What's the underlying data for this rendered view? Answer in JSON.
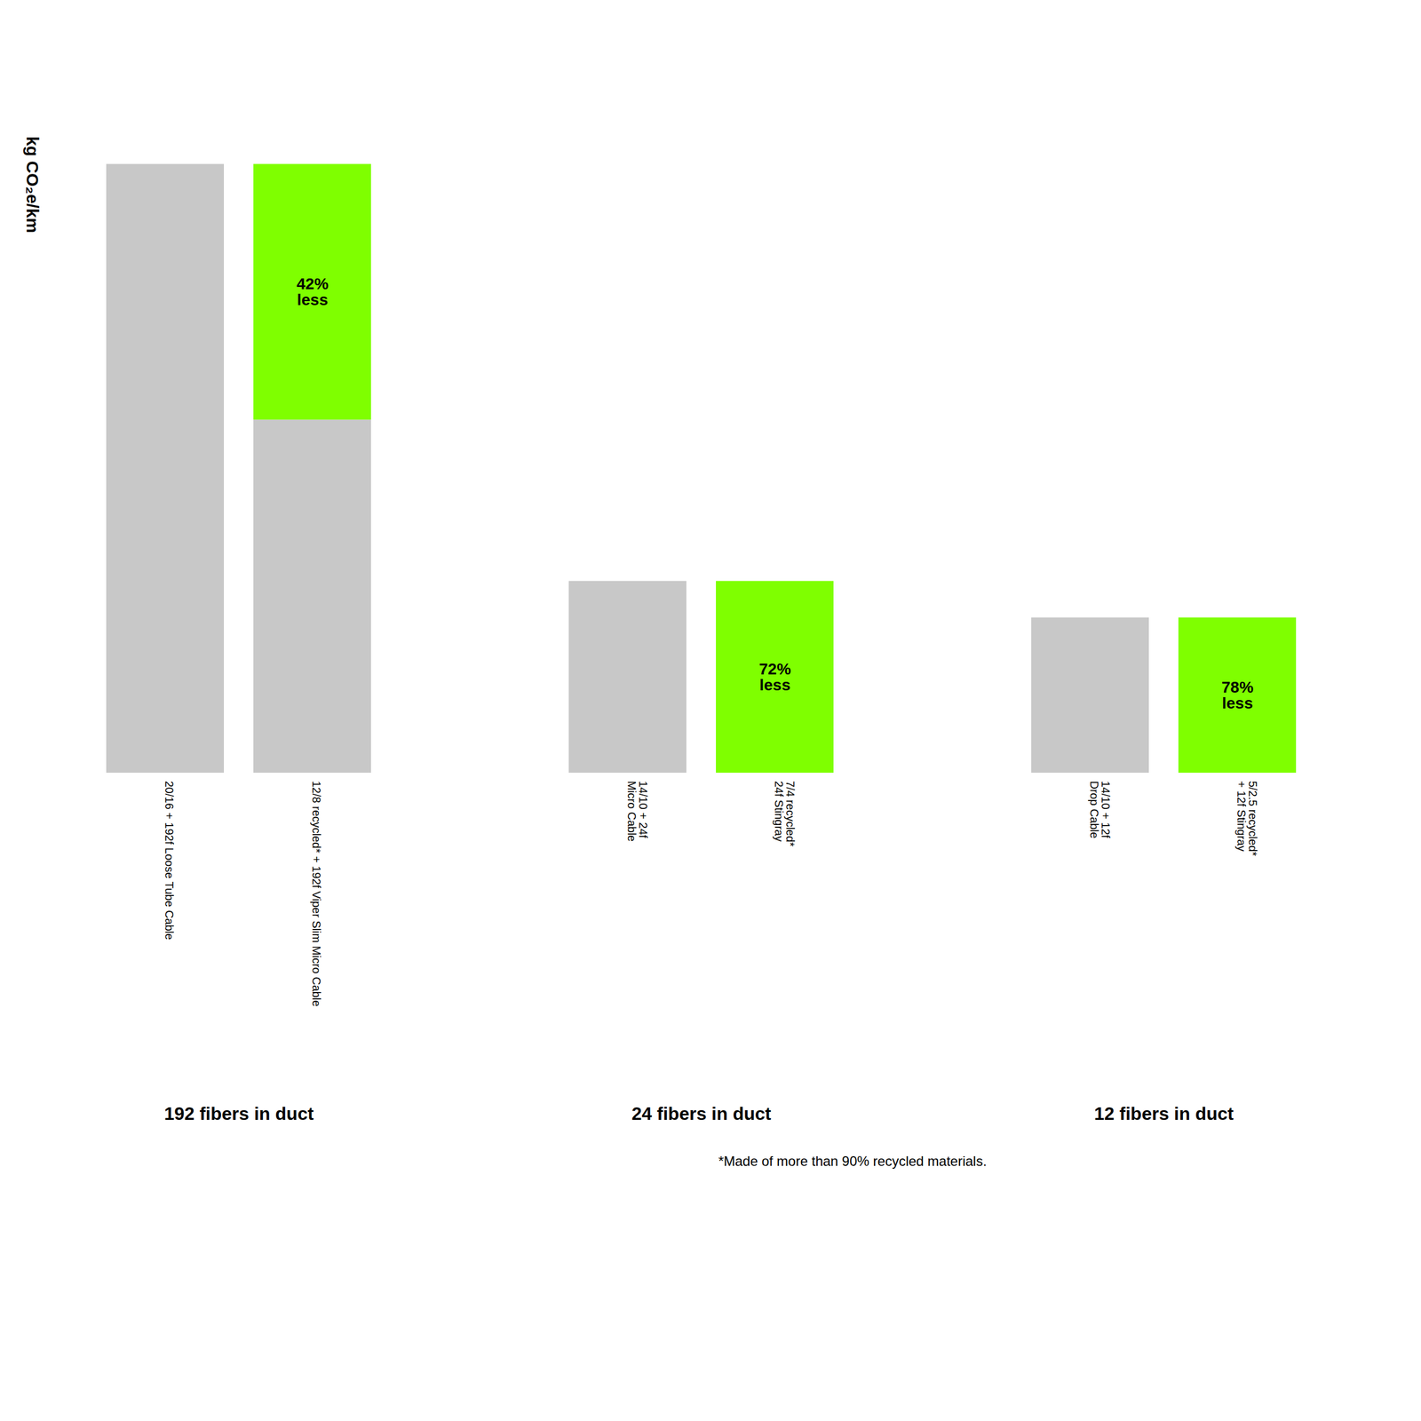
{
  "chart_data": {
    "type": "bar",
    "stacked": true,
    "ylabel": "kg CO₂e/km",
    "footnote": "*Made of more than 90% recycled materials.",
    "ylim": [
      0,
      1.12
    ],
    "tick_labels": false,
    "grid": false,
    "groups": [
      {
        "label": "192 fibers in duct",
        "categories": [
          "20/16 + 192f Loose Tube Cable",
          "12/8 recycled* + 192f Viper Slim Micro Cable"
        ]
      },
      {
        "label": "24 fibers in duct",
        "categories": [
          "14/10 + 24f\nMicro Cable",
          "7/4 recycled*\n24f Stingray"
        ]
      },
      {
        "label": "12 fibers in duct",
        "categories": [
          "14/10 + 12f\nDrop Cable",
          "5/2.5 recycled*\n+ 12f Stingray"
        ]
      }
    ],
    "series": [
      {
        "color": "#c8c8c8",
        "values": [
          1.0,
          0.58,
          0.315,
          null,
          0.255,
          null
        ]
      },
      {
        "color": "#7fff00",
        "values": [
          null,
          0.42,
          null,
          0.315,
          null,
          0.255
        ],
        "annotations": [
          null,
          "42%\nless",
          null,
          "72%\nless",
          null,
          "78%\nless"
        ]
      }
    ]
  }
}
